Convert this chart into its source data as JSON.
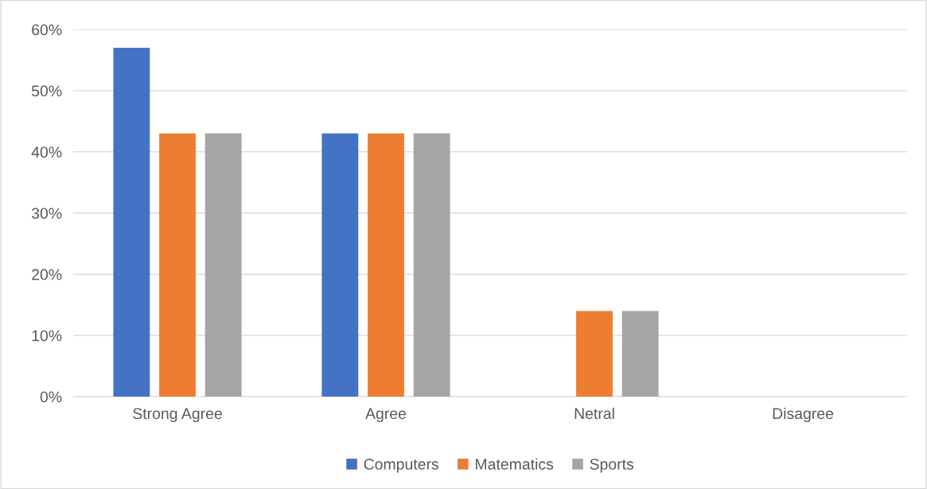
{
  "chart_data": {
    "type": "bar",
    "categories": [
      "Strong Agree",
      "Agree",
      "Netral",
      "Disagree"
    ],
    "series": [
      {
        "name": "Computers",
        "color": "#4472c4",
        "values": [
          57,
          43,
          0,
          0
        ]
      },
      {
        "name": "Matematics",
        "color": "#ed7d31",
        "values": [
          43,
          43,
          14,
          0
        ]
      },
      {
        "name": "Sports",
        "color": "#a5a5a5",
        "values": [
          43,
          43,
          14,
          0
        ]
      }
    ],
    "ylim": [
      0,
      60
    ],
    "yticks": [
      {
        "value": 0,
        "label": "0%"
      },
      {
        "value": 10,
        "label": "10%"
      },
      {
        "value": 20,
        "label": "20%"
      },
      {
        "value": 30,
        "label": "30%"
      },
      {
        "value": 40,
        "label": "40%"
      },
      {
        "value": 50,
        "label": "50%"
      },
      {
        "value": 60,
        "label": "60%"
      }
    ],
    "grid": "y",
    "legend": "bottom"
  }
}
